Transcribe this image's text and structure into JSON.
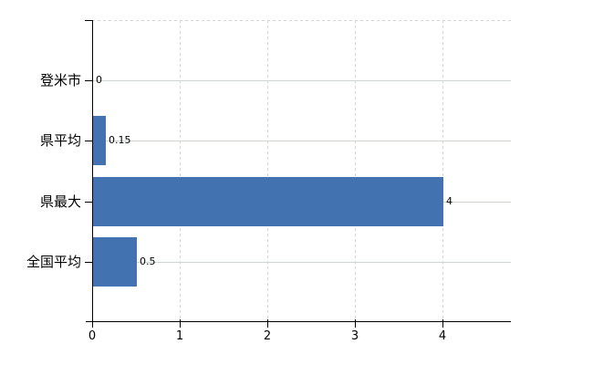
{
  "chart_data": {
    "type": "bar",
    "orientation": "horizontal",
    "title": "",
    "xlabel": "",
    "ylabel": "",
    "categories": [
      "登米市",
      "県平均",
      "県最大",
      "全国平均"
    ],
    "values": [
      0,
      0.15,
      4,
      0.5
    ],
    "value_labels": [
      "0",
      "0.15",
      "4",
      "0.5"
    ],
    "xticks": [
      0,
      1,
      2,
      3,
      4
    ],
    "xtick_labels": [
      "0",
      "1",
      "2",
      "3",
      "4"
    ],
    "xlim": [
      0,
      4.78
    ],
    "grid": "on",
    "legend": "none",
    "colors": {
      "bar_fill": "#4272b0",
      "bar_edge": "#38659f",
      "h_gridline": "#ccd8cc",
      "v_gridline": "#d6d2da",
      "axis": "#000000",
      "text": "#000000",
      "background": "#ffffff"
    }
  }
}
